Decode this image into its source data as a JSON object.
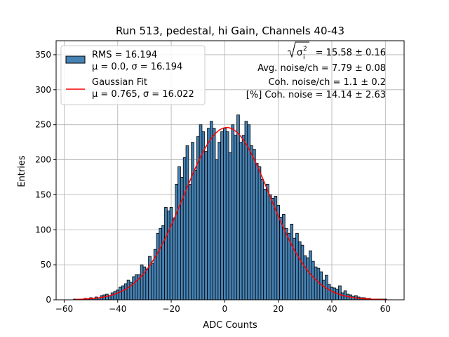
{
  "chart_data": {
    "type": "bar",
    "title": "Run 513, pedestal, hi Gain, Channels 40-43",
    "xlabel": "ADC Counts",
    "ylabel": "Entries",
    "xlim": [
      -63,
      67
    ],
    "ylim": [
      0,
      370
    ],
    "xticks": [
      -60,
      -40,
      -20,
      0,
      20,
      40,
      60
    ],
    "yticks": [
      0,
      50,
      100,
      150,
      200,
      250,
      300,
      350
    ],
    "grid": true,
    "legend_position": "top-left",
    "bar_color": "#4682b4",
    "fit_color": "#ff0000",
    "bin_width": 1,
    "bins_x": [
      -56,
      -55,
      -54,
      -53,
      -52,
      -51,
      -50,
      -49,
      -48,
      -47,
      -46,
      -45,
      -44,
      -43,
      -42,
      -41,
      -40,
      -39,
      -38,
      -37,
      -36,
      -35,
      -34,
      -33,
      -32,
      -31,
      -30,
      -29,
      -28,
      -27,
      -26,
      -25,
      -24,
      -23,
      -22,
      -21,
      -20,
      -19,
      -18,
      -17,
      -16,
      -15,
      -14,
      -13,
      -12,
      -11,
      -10,
      -9,
      -8,
      -7,
      -6,
      -5,
      -4,
      -3,
      -2,
      -1,
      0,
      1,
      2,
      3,
      4,
      5,
      6,
      7,
      8,
      9,
      10,
      11,
      12,
      13,
      14,
      15,
      16,
      17,
      18,
      19,
      20,
      21,
      22,
      23,
      24,
      25,
      26,
      27,
      28,
      29,
      30,
      31,
      32,
      33,
      34,
      35,
      36,
      37,
      38,
      39,
      40,
      41,
      42,
      43,
      44,
      45,
      46,
      47,
      48,
      49,
      50,
      51,
      52,
      53,
      54,
      55,
      56,
      57,
      58,
      59,
      60
    ],
    "bins_y": [
      1,
      0,
      1,
      1,
      2,
      1,
      3,
      2,
      4,
      3,
      6,
      7,
      8,
      6,
      10,
      12,
      14,
      18,
      20,
      23,
      28,
      25,
      33,
      36,
      36,
      50,
      47,
      44,
      62,
      52,
      72,
      95,
      102,
      106,
      132,
      127,
      132,
      117,
      165,
      190,
      175,
      203,
      220,
      165,
      225,
      185,
      233,
      250,
      240,
      212,
      245,
      255,
      245,
      200,
      225,
      240,
      245,
      240,
      210,
      250,
      235,
      264,
      225,
      235,
      255,
      250,
      220,
      215,
      195,
      190,
      172,
      158,
      165,
      150,
      145,
      148,
      135,
      118,
      122,
      102,
      95,
      108,
      88,
      95,
      83,
      78,
      63,
      60,
      70,
      55,
      47,
      45,
      40,
      28,
      35,
      22,
      18,
      17,
      15,
      20,
      10,
      13,
      8,
      7,
      5,
      6,
      4,
      3,
      3,
      2,
      2,
      1,
      1,
      1,
      1,
      1,
      1
    ],
    "series": [
      {
        "name": "RMS = 16.194",
        "sub": "μ = 0.0, σ = 16.194",
        "kind": "histogram"
      },
      {
        "name": "Gaussian Fit",
        "sub": "μ = 0.765, σ = 16.022",
        "kind": "line",
        "mu": 0.765,
        "sigma": 16.022,
        "amplitude": 246,
        "x_range": [
          -56,
          60
        ]
      }
    ],
    "annotations": [
      {
        "sqrt_prefix": "σ",
        "sqrt_sub": "i",
        "sqrt_sup": "2",
        "text": " = 15.58 ± 0.16"
      },
      {
        "text": "Avg. noise/ch = 7.79 ± 0.08"
      },
      {
        "text": "Coh. noise/ch = 1.1 ± 0.2"
      },
      {
        "text": "[%] Coh. noise = 14.14 ± 2.63"
      }
    ]
  }
}
